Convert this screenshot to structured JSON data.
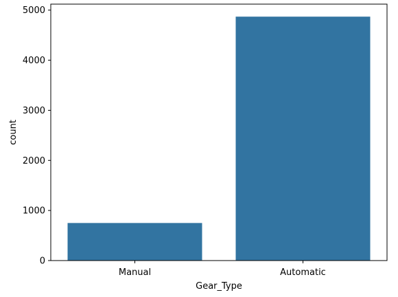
{
  "chart_data": {
    "type": "bar",
    "title": "",
    "xlabel": "Gear_Type",
    "ylabel": "count",
    "categories": [
      "Manual",
      "Automatic"
    ],
    "values": [
      750,
      4870
    ],
    "ylim": [
      0,
      5120
    ],
    "yticks": [
      0,
      1000,
      2000,
      3000,
      4000,
      5000
    ],
    "bar_color": "#3274a1",
    "grid": false,
    "legend": "none"
  }
}
